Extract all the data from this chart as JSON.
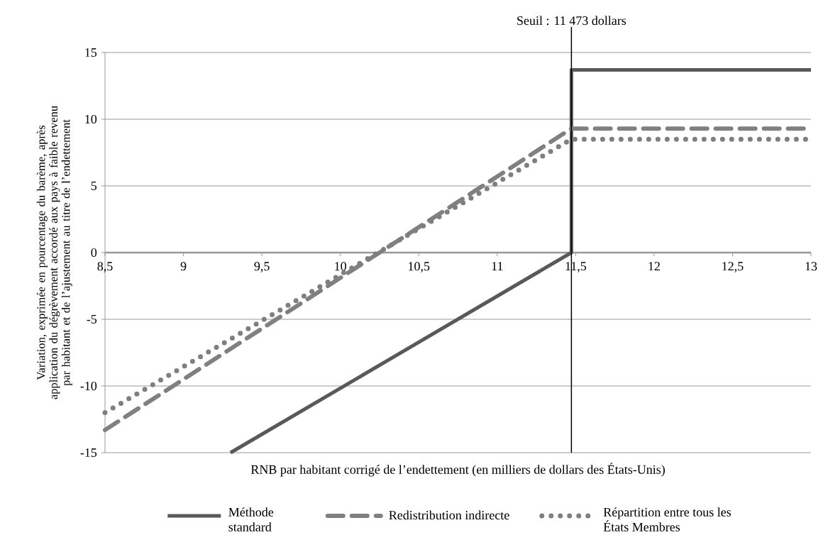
{
  "chart_data": {
    "type": "line",
    "xlabel": "RNB par habitant corrigé de l’endettement (en milliers de dollars des États-Unis)",
    "ylabel": "Variation, exprimée en pourcentage du barème, après application du dégrèvement accordé aux pays à faible revenu par habitant et de l’ajustement au titre de l’endettement",
    "xlim": [
      8.5,
      13
    ],
    "ylim": [
      -15,
      15
    ],
    "xticks": [
      {
        "value": 8.5,
        "label": "8,5"
      },
      9,
      {
        "value": 9.5,
        "label": "9,5"
      },
      10,
      {
        "value": 10.5,
        "label": "10,5"
      },
      11,
      {
        "value": 11.5,
        "label": "11,5"
      },
      12,
      {
        "value": 12.5,
        "label": "12,5"
      },
      13
    ],
    "yticks": [
      -15,
      -10,
      -5,
      0,
      5,
      10,
      15
    ],
    "grid": "y",
    "legend": "bottom",
    "series": [
      {
        "name": "Méthode standard",
        "color": "#595959",
        "line_style": "solid",
        "x": [
          9.3,
          11.473,
          11.473,
          13
        ],
        "values": [
          -15,
          0,
          13.7,
          13.7
        ]
      },
      {
        "name": "Redistribution indirecte",
        "color": "#808080",
        "line_style": "dashed",
        "x": [
          8.5,
          11.473,
          13
        ],
        "values": [
          -13.3,
          9.3,
          9.3
        ]
      },
      {
        "name": "Répartition entre tous les États Membres",
        "color": "#7f7f7f",
        "line_style": "dotted",
        "x": [
          8.5,
          11.473,
          13
        ],
        "values": [
          -12,
          8.5,
          8.5
        ]
      }
    ],
    "ref_lines": [
      {
        "axis": "x",
        "value": 11.473,
        "label": "Seuil : 11 473 dollars",
        "color": "#000000"
      }
    ]
  }
}
